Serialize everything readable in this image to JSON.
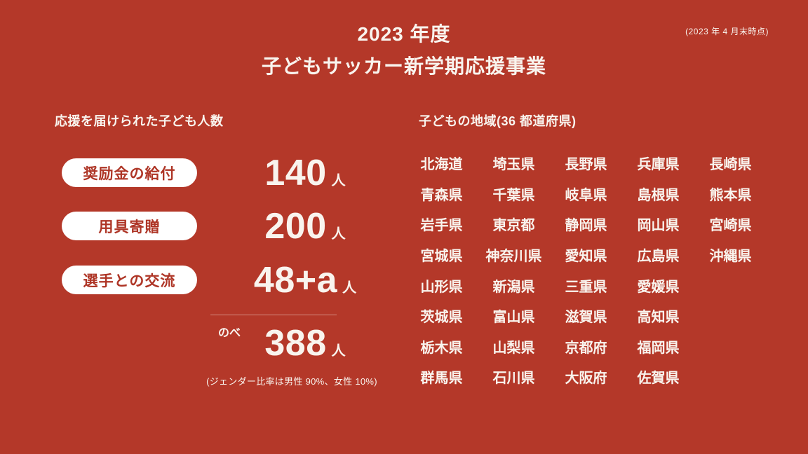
{
  "colors": {
    "background": "#B43829",
    "text": "#F9F4EE",
    "pill_bg": "#FFFFFF",
    "pill_text": "#AE3526"
  },
  "header": {
    "title_line1": "2023 年度",
    "title_line2": "子どもサッカー新学期応援事業",
    "asof_note": "(2023 年 4 月末時点)"
  },
  "left": {
    "heading": "応援を届けられた子ども人数",
    "items": [
      {
        "label": "奨励金の給付",
        "value": "140",
        "unit": "人"
      },
      {
        "label": "用具寄贈",
        "value": "200",
        "unit": "人"
      },
      {
        "label": "選手との交流",
        "value": "48+a",
        "unit": "人"
      }
    ],
    "total": {
      "prefix": "のべ",
      "value": "388",
      "unit": "人"
    },
    "footnote": "(ジェンダー比率は男性 90%、女性 10%)"
  },
  "regions": {
    "heading": "子どもの地域(36 都道府県)",
    "columns": [
      [
        "北海道",
        "青森県",
        "岩手県",
        "宮城県",
        "山形県",
        "茨城県",
        "栃木県",
        "群馬県"
      ],
      [
        "埼玉県",
        "千葉県",
        "東京都",
        "神奈川県",
        "新潟県",
        "富山県",
        "山梨県",
        "石川県"
      ],
      [
        "長野県",
        "岐阜県",
        "静岡県",
        "愛知県",
        "三重県",
        "滋賀県",
        "京都府",
        "大阪府"
      ],
      [
        "兵庫県",
        "島根県",
        "岡山県",
        "広島県",
        "愛媛県",
        "高知県",
        "福岡県",
        "佐賀県"
      ],
      [
        "長崎県",
        "熊本県",
        "宮崎県",
        "沖縄県"
      ]
    ]
  }
}
